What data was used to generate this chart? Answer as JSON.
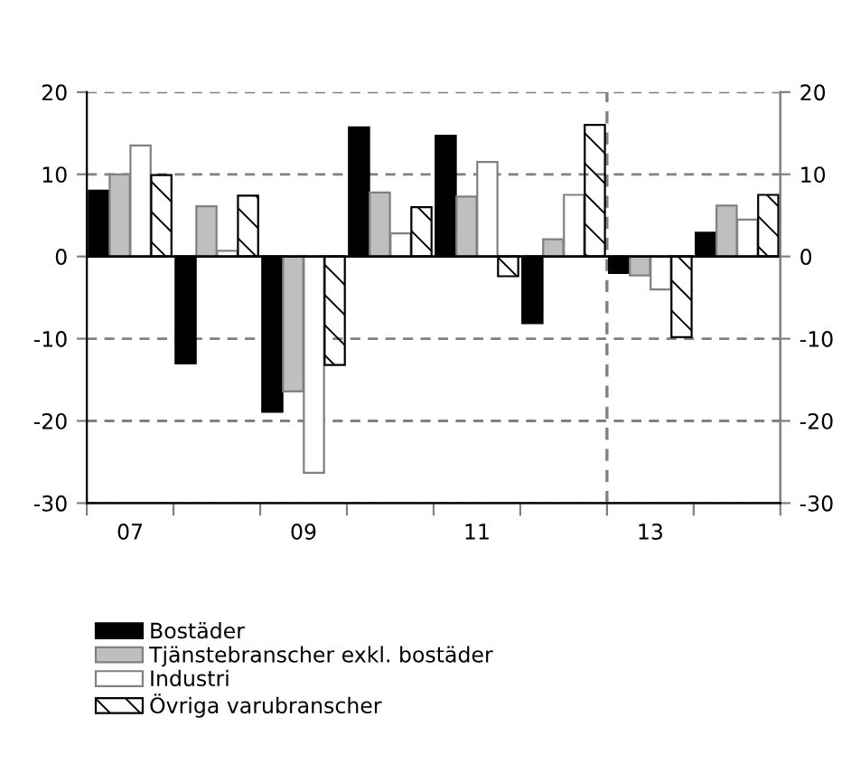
{
  "chart_data": {
    "type": "bar",
    "x": [
      2007,
      2008,
      2009,
      2010,
      2011,
      2012,
      2013,
      2014
    ],
    "series": [
      {
        "name": "Bostäder",
        "color": "#000000",
        "values": [
          8.0,
          -13.0,
          -18.9,
          15.7,
          14.7,
          -8.1,
          -2.0,
          2.9
        ]
      },
      {
        "name": "Tjänstebranscher exkl. bostäder",
        "color": "#bfbfbf",
        "values": [
          10.0,
          6.1,
          -16.4,
          7.8,
          7.3,
          2.1,
          -2.3,
          6.2
        ]
      },
      {
        "name": "Industri",
        "color": "#ffffff",
        "values": [
          13.5,
          0.7,
          -26.3,
          2.8,
          11.5,
          7.5,
          -4.0,
          4.5
        ]
      },
      {
        "name": "Övriga varubranscher",
        "color": "#000000",
        "values": [
          9.9,
          7.4,
          -13.2,
          6.0,
          -2.4,
          16.0,
          -9.8,
          7.5
        ]
      }
    ],
    "xlim": [
      2006.5,
      2014.5
    ],
    "xticks": [
      {
        "value": 2006.5,
        "label": null
      },
      {
        "value": 2007,
        "label": "07"
      },
      {
        "value": 2007.5,
        "label": null
      },
      {
        "value": 2008.5,
        "label": null
      },
      {
        "value": 2009,
        "label": "09"
      },
      {
        "value": 2009.5,
        "label": null
      },
      {
        "value": 2010.5,
        "label": null
      },
      {
        "value": 2011,
        "label": "11"
      },
      {
        "value": 2011.5,
        "label": null
      },
      {
        "value": 2012.5,
        "label": null
      },
      {
        "value": 2013,
        "label": "13"
      },
      {
        "value": 2013.5,
        "label": null
      },
      {
        "value": 2014.5,
        "label": null
      }
    ],
    "ylim": [
      -30,
      20
    ],
    "yticks": [
      -30,
      -20,
      -10,
      0,
      10,
      20
    ],
    "y2lim": [
      -30,
      20
    ],
    "y2ticks": [
      -30,
      -20,
      -10,
      0,
      10,
      20
    ],
    "ref_lines": [
      {
        "axis": "x",
        "value": 2012.5,
        "line_style": "dashed",
        "color": "#808080"
      }
    ],
    "grid": "y",
    "legend": "bottom"
  }
}
